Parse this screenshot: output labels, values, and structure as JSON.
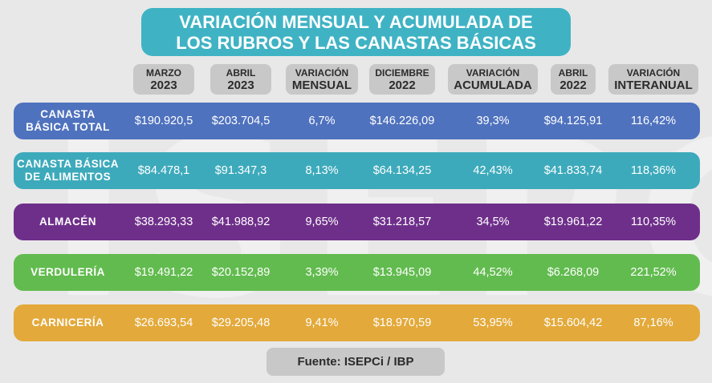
{
  "title": {
    "line1": "VARIACIÓN MENSUAL Y ACUMULADA DE",
    "line2": "LOS RUBROS Y LAS CANASTAS BÁSICAS"
  },
  "watermark": "ISEPCi",
  "columns": [
    {
      "l1": "MARZO",
      "l2": "2023"
    },
    {
      "l1": "ABRIL",
      "l2": "2023"
    },
    {
      "l1": "VARIACIÓN",
      "l2": "MENSUAL"
    },
    {
      "l1": "DICIEMBRE",
      "l2": "2022"
    },
    {
      "l1": "VARIACIÓN",
      "l2": "ACUMULADA"
    },
    {
      "l1": "ABRIL",
      "l2": "2022"
    },
    {
      "l1": "VARIACIÓN",
      "l2": "INTERANUAL"
    }
  ],
  "rows": [
    {
      "label1": "CANASTA",
      "label2": "BÁSICA TOTAL",
      "color": "#4f72be",
      "values": [
        "$190.920,5",
        "$203.704,5",
        "6,7%",
        "$146.226,09",
        "39,3%",
        "$94.125,91",
        "116,42%"
      ]
    },
    {
      "label1": "CANASTA BÁSICA",
      "label2": "DE ALIMENTOS",
      "color": "#3daabb",
      "values": [
        "$84.478,1",
        "$91.347,3",
        "8,13%",
        "$64.134,25",
        "42,43%",
        "$41.833,74",
        "118,36%"
      ]
    },
    {
      "label1": "ALMACÉN",
      "label2": "",
      "color": "#6e2f8a",
      "values": [
        "$38.293,33",
        "$41.988,92",
        "9,65%",
        "$31.218,57",
        "34,5%",
        "$19.961,22",
        "110,35%"
      ]
    },
    {
      "label1": "VERDULERÍA",
      "label2": "",
      "color": "#62bb4f",
      "values": [
        "$19.491,22",
        "$20.152,89",
        "3,39%",
        "$13.945,09",
        "44,52%",
        "$6.268,09",
        "221,52%"
      ]
    },
    {
      "label1": "CARNICERÍA",
      "label2": "",
      "color": "#e3a93a",
      "values": [
        "$26.693,54",
        "$29.205,48",
        "9,41%",
        "$18.970,59",
        "53,95%",
        "$15.604,42",
        "87,16%"
      ]
    }
  ],
  "source": "Fuente: ISEPCi / IBP"
}
